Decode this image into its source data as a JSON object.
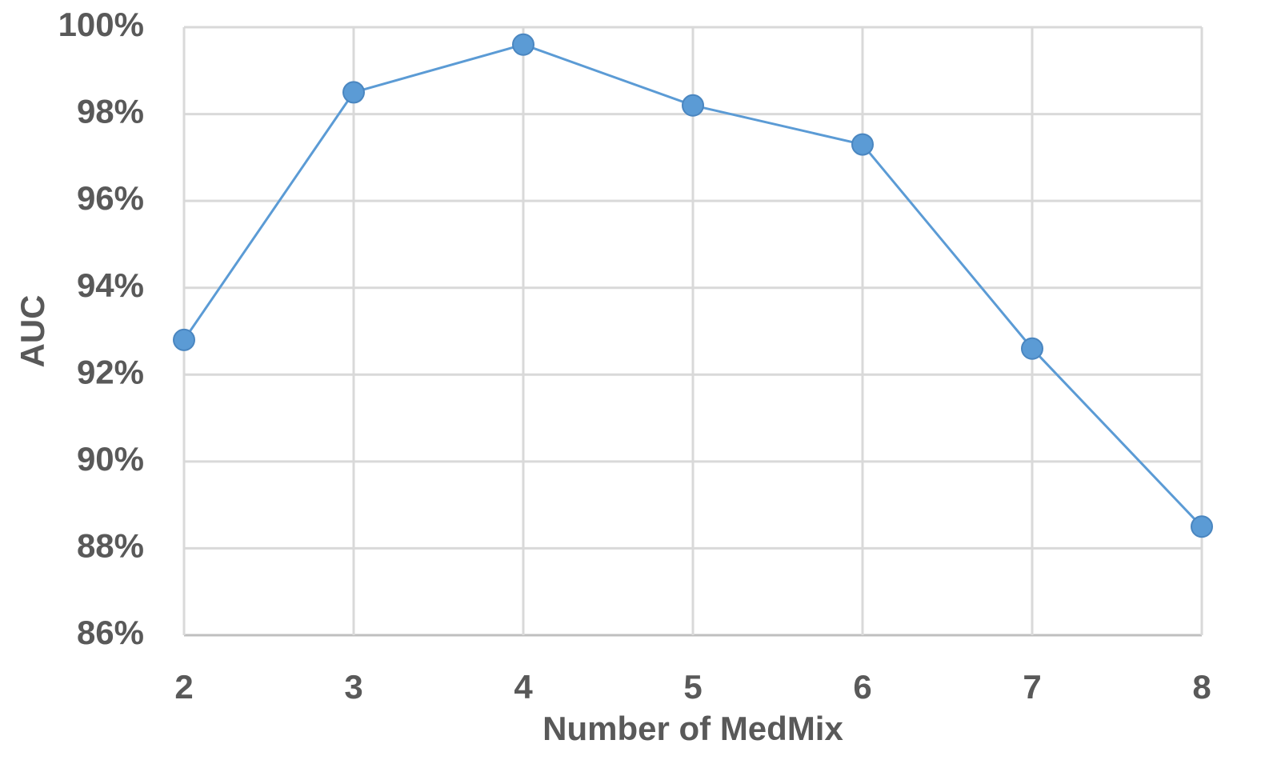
{
  "chart_data": {
    "type": "line",
    "xlabel": "Number of MedMix",
    "ylabel": "AUC",
    "x": [
      2,
      3,
      4,
      5,
      6,
      7,
      8
    ],
    "values": [
      92.8,
      98.5,
      99.6,
      98.2,
      97.3,
      92.6,
      88.5
    ],
    "color": "#5b9bd5",
    "xlim": [
      2,
      8
    ],
    "xticks": [
      2,
      3,
      4,
      5,
      6,
      7,
      8
    ],
    "ylim": [
      86,
      100
    ],
    "yticks": [
      {
        "value": 86,
        "label": "86%"
      },
      {
        "value": 88,
        "label": "88%"
      },
      {
        "value": 90,
        "label": "90%"
      },
      {
        "value": 92,
        "label": "92%"
      },
      {
        "value": 94,
        "label": "94%"
      },
      {
        "value": 96,
        "label": "96%"
      },
      {
        "value": 98,
        "label": "98%"
      },
      {
        "value": 100,
        "label": "100%"
      }
    ],
    "grid": true
  }
}
